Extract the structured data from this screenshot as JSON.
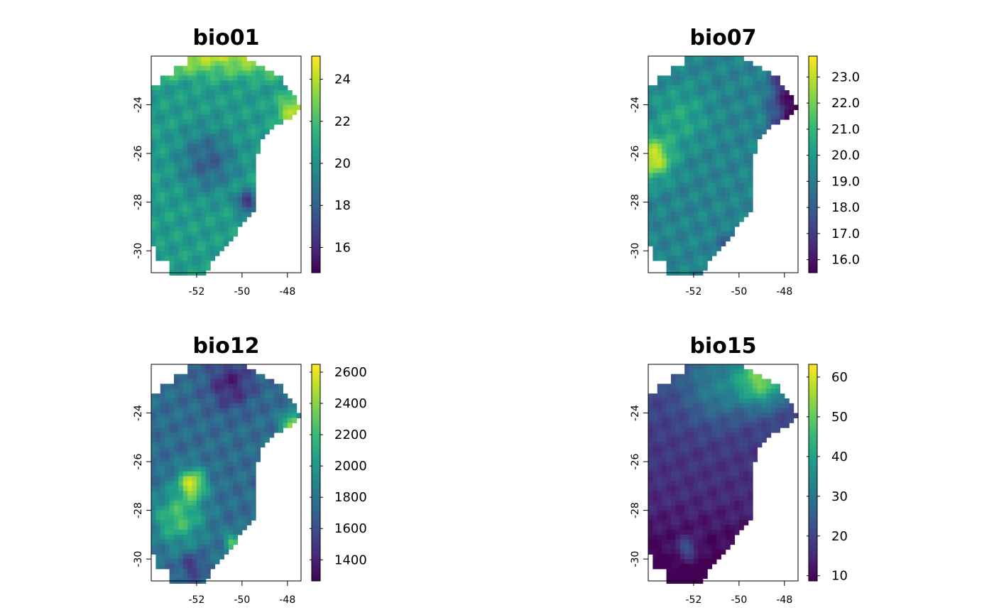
{
  "colors": {
    "viridis": [
      "#440154",
      "#482878",
      "#3e4989",
      "#31688e",
      "#26828e",
      "#1f9e89",
      "#35b779",
      "#6ece58",
      "#b5de2b",
      "#fde725"
    ],
    "frame": "#000000",
    "background": "#ffffff"
  },
  "chart_data": [
    {
      "type": "heatmap",
      "title": "bio01",
      "xlabel": "",
      "ylabel": "",
      "x_ticks": [
        "-52",
        "-50",
        "-48"
      ],
      "x_tick_values": [
        -52,
        -50,
        -48
      ],
      "y_ticks": [
        "-24",
        "-26",
        "-28",
        "-30"
      ],
      "y_tick_values": [
        -24,
        -26,
        -28,
        -30
      ],
      "xlim": [
        -54.0,
        -47.4
      ],
      "ylim": [
        -30.9,
        -22.0
      ],
      "colorbar_labels": [
        "24",
        "22",
        "20",
        "18",
        "16"
      ],
      "colorbar_values": [
        24,
        22,
        20,
        18,
        16
      ],
      "value_range": [
        14.8,
        25.1
      ],
      "grid": false,
      "pattern": "bio01"
    },
    {
      "type": "heatmap",
      "title": "bio07",
      "xlabel": "",
      "ylabel": "",
      "x_ticks": [
        "-52",
        "-50",
        "-48"
      ],
      "x_tick_values": [
        -52,
        -50,
        -48
      ],
      "y_ticks": [
        "-24",
        "-26",
        "-28",
        "-30"
      ],
      "y_tick_values": [
        -24,
        -26,
        -28,
        -30
      ],
      "xlim": [
        -54.0,
        -47.4
      ],
      "ylim": [
        -30.9,
        -22.0
      ],
      "colorbar_labels": [
        "23.0",
        "22.0",
        "21.0",
        "20.0",
        "19.0",
        "18.0",
        "17.0",
        "16.0"
      ],
      "colorbar_values": [
        23,
        22,
        21,
        20,
        19,
        18,
        17,
        16
      ],
      "value_range": [
        15.5,
        23.8
      ],
      "grid": false,
      "pattern": "bio07"
    },
    {
      "type": "heatmap",
      "title": "bio12",
      "xlabel": "",
      "ylabel": "",
      "x_ticks": [
        "-52",
        "-50",
        "-48"
      ],
      "x_tick_values": [
        -52,
        -50,
        -48
      ],
      "y_ticks": [
        "-24",
        "-26",
        "-28",
        "-30"
      ],
      "y_tick_values": [
        -24,
        -26,
        -28,
        -30
      ],
      "xlim": [
        -54.0,
        -47.4
      ],
      "ylim": [
        -30.9,
        -22.0
      ],
      "colorbar_labels": [
        "2600",
        "2400",
        "2200",
        "2000",
        "1800",
        "1600",
        "1400"
      ],
      "colorbar_values": [
        2600,
        2400,
        2200,
        2000,
        1800,
        1600,
        1400
      ],
      "value_range": [
        1265,
        2650
      ],
      "grid": false,
      "pattern": "bio12"
    },
    {
      "type": "heatmap",
      "title": "bio15",
      "xlabel": "",
      "ylabel": "",
      "x_ticks": [
        "-52",
        "-50",
        "-48"
      ],
      "x_tick_values": [
        -52,
        -50,
        -48
      ],
      "y_ticks": [
        "-24",
        "-26",
        "-28",
        "-30"
      ],
      "y_tick_values": [
        -24,
        -26,
        -28,
        -30
      ],
      "xlim": [
        -54.0,
        -47.4
      ],
      "ylim": [
        -30.9,
        -22.0
      ],
      "colorbar_labels": [
        "60",
        "50",
        "40",
        "30",
        "20",
        "10"
      ],
      "colorbar_values": [
        60,
        50,
        40,
        30,
        20,
        10
      ],
      "value_range": [
        8.7,
        63.2
      ],
      "grid": false,
      "pattern": "bio15"
    }
  ]
}
